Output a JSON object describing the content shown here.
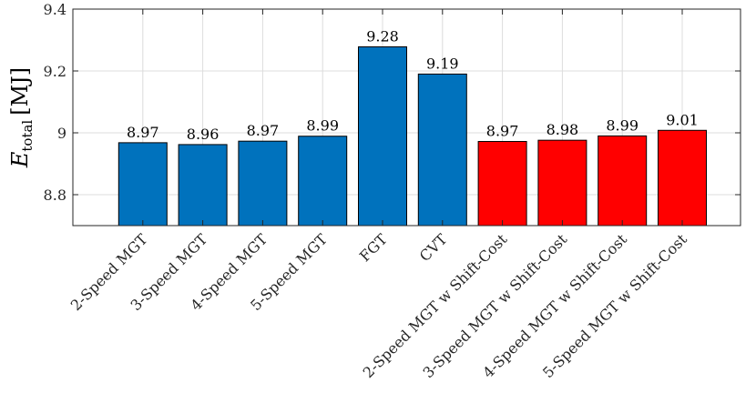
{
  "chart_data": {
    "type": "bar",
    "categories": [
      "2-Speed MGT",
      "3-Speed MGT",
      "4-Speed MGT",
      "5-Speed MGT",
      "FGT",
      "CVT",
      "2-Speed MGT w Shift-Cost",
      "3-Speed MGT w Shift-Cost",
      "4-Speed MGT w Shift-Cost",
      "5-Speed MGT w Shift-Cost"
    ],
    "values": [
      8.968,
      8.962,
      8.973,
      8.989,
      9.278,
      9.19,
      8.972,
      8.976,
      8.99,
      9.008
    ],
    "value_labels": [
      "8.97",
      "8.96",
      "8.97",
      "8.99",
      "9.28",
      "9.19",
      "8.97",
      "8.98",
      "8.99",
      "9.01"
    ],
    "bar_colors": [
      "#0072BD",
      "#0072BD",
      "#0072BD",
      "#0072BD",
      "#0072BD",
      "#0072BD",
      "#FF0000",
      "#FF0000",
      "#FF0000",
      "#FF0000"
    ],
    "ylim": [
      8.7,
      9.4
    ],
    "yticks": [
      8.8,
      9,
      9.2,
      9.4
    ],
    "ytick_labels": [
      "8.8",
      "9",
      "9.2",
      "9.4"
    ],
    "ylabel_symbol": "E",
    "ylabel_subscript": "total",
    "ylabel_unit": "[MJ]",
    "xlabel": "",
    "title": "",
    "grid": true
  }
}
